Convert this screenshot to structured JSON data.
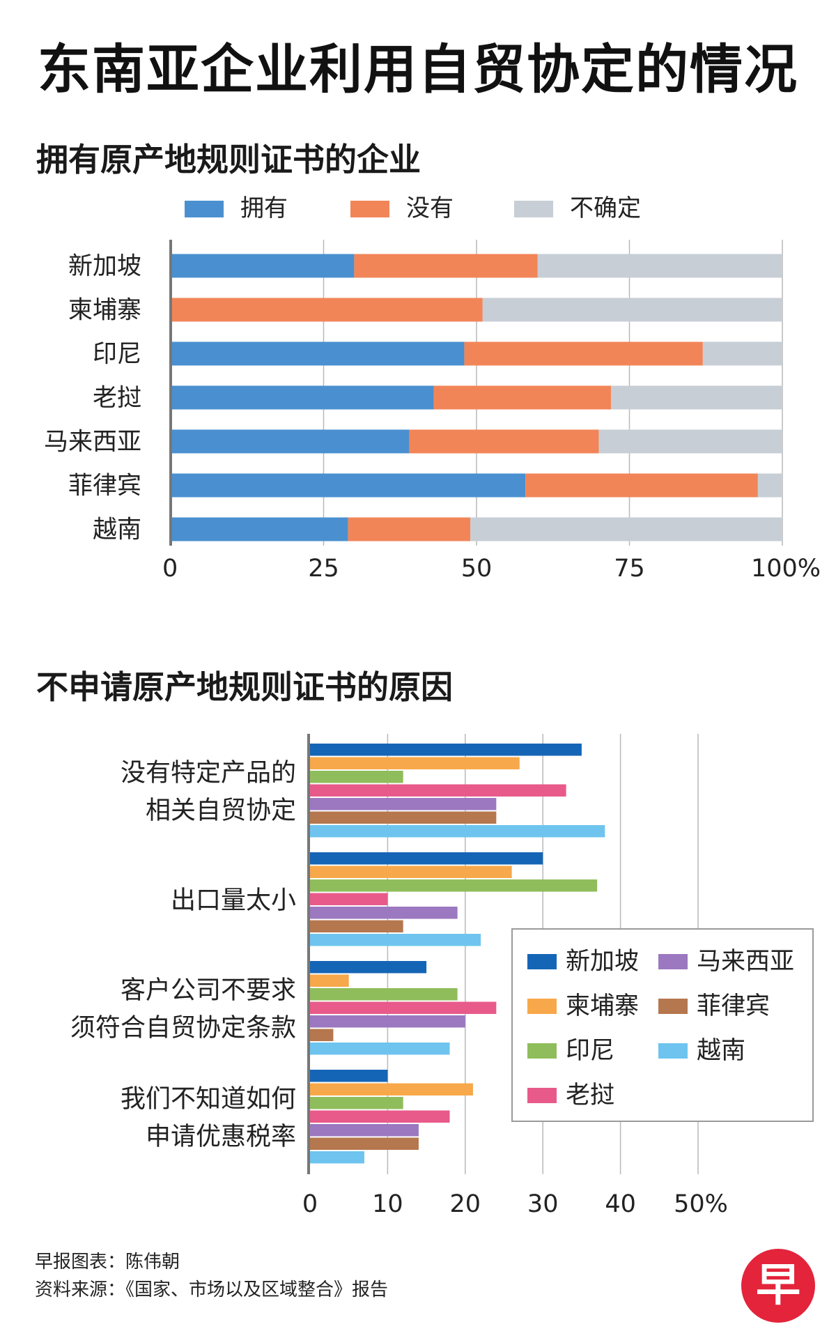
{
  "title": "东南亚企业利用自贸协定的情况",
  "colors": {
    "have": "#4a90d0",
    "no": "#f28558",
    "unsure": "#c8ced6",
    "grid": "#b9b9b9",
    "axis": "#777777",
    "新加坡": "#1565b6",
    "柬埔寨": "#f7a84a",
    "印尼": "#8fbd5b",
    "老挝": "#e85a8a",
    "马来西亚": "#9b78c0",
    "菲律宾": "#b5774e",
    "越南": "#6ec4ee",
    "logo": "#e3243b"
  },
  "chart_data": [
    {
      "type": "bar",
      "orientation": "horizontal",
      "stacked": true,
      "title": "拥有原产地规则证书的企业",
      "categories": [
        "新加坡",
        "柬埔寨",
        "印尼",
        "老挝",
        "马来西亚",
        "菲律宾",
        "越南"
      ],
      "series": [
        {
          "name": "拥有",
          "color_key": "have",
          "values": [
            30,
            0,
            48,
            43,
            39,
            58,
            29
          ]
        },
        {
          "name": "没有",
          "color_key": "no",
          "values": [
            30,
            51,
            39,
            29,
            31,
            38,
            20
          ]
        },
        {
          "name": "不确定",
          "color_key": "unsure",
          "values": [
            40,
            49,
            13,
            28,
            30,
            4,
            51
          ]
        }
      ],
      "xticks": [
        "0",
        "25",
        "50",
        "75",
        "100%"
      ],
      "xlim": [
        0,
        100
      ],
      "legend": "top",
      "grid": true
    },
    {
      "type": "bar",
      "orientation": "horizontal",
      "grouped": true,
      "title": "不申请原产地规则证书的原因",
      "categories": [
        [
          "没有特定产品的",
          "相关自贸协定"
        ],
        [
          "出口量太小"
        ],
        [
          "客户公司不要求",
          "须符合自贸协定条款"
        ],
        [
          "我们不知道如何",
          "申请优惠税率"
        ]
      ],
      "series": [
        {
          "name": "新加坡",
          "values": [
            35,
            30,
            15,
            10
          ]
        },
        {
          "name": "柬埔寨",
          "values": [
            27,
            26,
            5,
            21
          ]
        },
        {
          "name": "印尼",
          "values": [
            12,
            37,
            19,
            12
          ]
        },
        {
          "name": "老挝",
          "values": [
            33,
            10,
            24,
            18
          ]
        },
        {
          "name": "马来西亚",
          "values": [
            24,
            19,
            20,
            14
          ]
        },
        {
          "name": "菲律宾",
          "values": [
            24,
            12,
            3,
            14
          ]
        },
        {
          "name": "越南",
          "values": [
            38,
            22,
            18,
            7
          ]
        }
      ],
      "xticks": [
        "0",
        "10",
        "20",
        "30",
        "40",
        "50%"
      ],
      "xlim": [
        0,
        50
      ],
      "legend": "bottom-right",
      "grid": true
    }
  ],
  "footer": {
    "credit": "早报图表：陈伟朝",
    "source": "资料来源：《国家、市场以及区域整合》报告"
  },
  "logo_text": "早"
}
